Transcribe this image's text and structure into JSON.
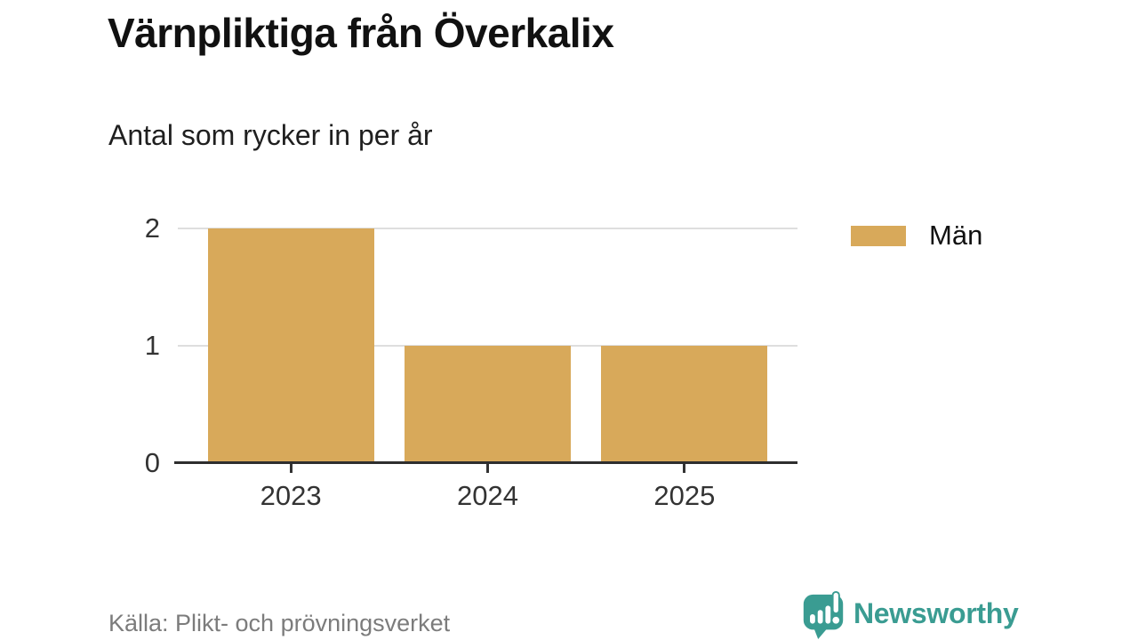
{
  "header": {
    "title": "Värnpliktiga från Överkalix",
    "subtitle": "Antal som rycker in per år"
  },
  "chart_data": {
    "type": "bar",
    "categories": [
      "2023",
      "2024",
      "2025"
    ],
    "series": [
      {
        "name": "Män",
        "values": [
          2,
          1,
          1
        ],
        "color": "#D8A95A"
      }
    ],
    "title": "Värnpliktiga från Överkalix",
    "subtitle": "Antal som rycker in per år",
    "xlabel": "",
    "ylabel": "",
    "ylim": [
      0,
      2
    ],
    "yticks": [
      0,
      1,
      2
    ],
    "grid": true,
    "legend_position": "right"
  },
  "footer": {
    "source": "Källa: Plikt- och prövningsverket",
    "brand": "Newsworthy"
  },
  "colors": {
    "bar": "#D8A95A",
    "teal": "#3A9C92",
    "axis": "#2e2e2e",
    "grid": "#dedede",
    "tick_text": "#333333",
    "muted_text": "#7c7c7c"
  }
}
